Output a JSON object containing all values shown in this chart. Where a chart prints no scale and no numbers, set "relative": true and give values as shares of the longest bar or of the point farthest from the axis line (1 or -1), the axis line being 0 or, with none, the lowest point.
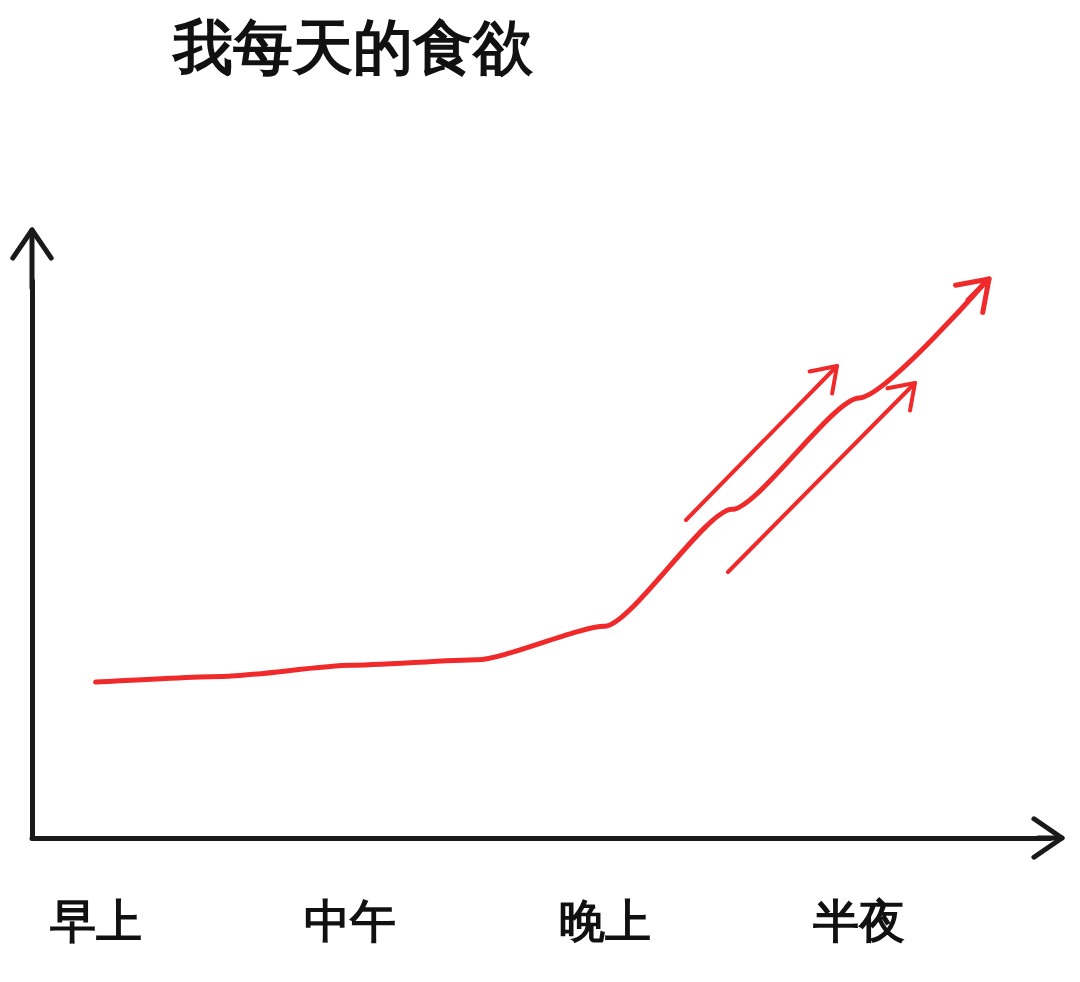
{
  "chart_data": {
    "type": "line",
    "title": "我每天的食欲",
    "relative": true,
    "categories": [
      "早上",
      null,
      "中午",
      null,
      "晚上",
      null,
      "半夜",
      null
    ],
    "series": [
      {
        "color": "#f02a2a",
        "values": [
          0.28,
          0.29,
          0.31,
          0.32,
          0.38,
          0.59,
          0.79,
          1
        ]
      }
    ],
    "grid": false,
    "marker": "none",
    "line_style": "solid"
  }
}
